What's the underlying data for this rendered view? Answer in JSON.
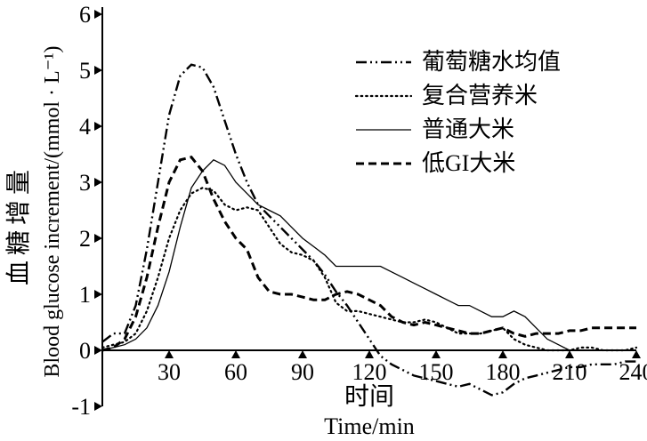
{
  "figure": {
    "background": "#ffffff",
    "line_color": "#000000"
  },
  "chart_data": {
    "type": "line",
    "title": "",
    "xlabel_cn": "时间",
    "xlabel_en": "Time/min",
    "ylabel_cn": "血糖增量",
    "ylabel_en": "Blood glucose increment/(mmol · L⁻¹)",
    "xlim": [
      0,
      240
    ],
    "ylim": [
      -1,
      6
    ],
    "x_ticks": [
      30,
      60,
      90,
      120,
      150,
      180,
      210,
      240
    ],
    "y_ticks": [
      6,
      5,
      4,
      3,
      2,
      1,
      0,
      -1
    ],
    "grid": false,
    "legend_position": "upper-right",
    "x": [
      0,
      5,
      10,
      15,
      20,
      25,
      30,
      35,
      40,
      45,
      50,
      55,
      60,
      65,
      70,
      75,
      80,
      85,
      90,
      95,
      100,
      105,
      110,
      115,
      120,
      125,
      130,
      135,
      140,
      145,
      150,
      155,
      160,
      165,
      170,
      175,
      180,
      185,
      190,
      195,
      200,
      205,
      210,
      215,
      220,
      225,
      230,
      235,
      240
    ],
    "series": [
      {
        "name": "葡萄糖水均值",
        "line_style": "dash-dot-dot",
        "dash": "12 4 2 4 2 4",
        "width": 2.4,
        "color": "#000000",
        "values": [
          0.15,
          0.3,
          0.3,
          0.8,
          1.8,
          3.0,
          4.2,
          4.9,
          5.1,
          5.05,
          4.7,
          4.1,
          3.5,
          3.0,
          2.6,
          2.4,
          2.2,
          2.0,
          1.8,
          1.6,
          1.35,
          1.05,
          0.8,
          0.5,
          0.2,
          -0.1,
          -0.25,
          -0.35,
          -0.45,
          -0.5,
          -0.55,
          -0.6,
          -0.65,
          -0.6,
          -0.7,
          -0.8,
          -0.75,
          -0.6,
          -0.5,
          -0.45,
          -0.4,
          -0.35,
          -0.3,
          -0.3,
          -0.25,
          -0.25,
          -0.25,
          -0.2,
          -0.2
        ]
      },
      {
        "name": "复合营养米",
        "line_style": "dotted",
        "dash": "1.6 4",
        "width": 2.2,
        "color": "#000000",
        "values": [
          0.05,
          0.1,
          0.15,
          0.3,
          0.7,
          1.3,
          2.0,
          2.5,
          2.8,
          2.9,
          2.85,
          2.6,
          2.5,
          2.55,
          2.5,
          2.2,
          1.9,
          1.75,
          1.7,
          1.6,
          1.3,
          0.85,
          0.7,
          0.7,
          0.65,
          0.6,
          0.55,
          0.5,
          0.5,
          0.55,
          0.5,
          0.4,
          0.3,
          0.3,
          0.3,
          0.35,
          0.4,
          0.2,
          0.1,
          0.05,
          0.0,
          0.0,
          0.0,
          0.05,
          0.05,
          0.0,
          0.0,
          0.0,
          0.05
        ]
      },
      {
        "name": "普通大米",
        "line_style": "solid",
        "dash": "",
        "width": 1.3,
        "color": "#000000",
        "values": [
          0.0,
          0.05,
          0.1,
          0.2,
          0.4,
          0.8,
          1.4,
          2.2,
          2.9,
          3.2,
          3.4,
          3.3,
          3.0,
          2.8,
          2.6,
          2.5,
          2.4,
          2.2,
          2.0,
          1.85,
          1.7,
          1.5,
          1.5,
          1.5,
          1.5,
          1.5,
          1.4,
          1.3,
          1.2,
          1.1,
          1.0,
          0.9,
          0.8,
          0.8,
          0.7,
          0.6,
          0.6,
          0.7,
          0.6,
          0.4,
          0.2,
          0.1,
          0.0,
          0.0,
          0.0,
          0.0,
          0.0,
          0.0,
          0.0
        ]
      },
      {
        "name": "低GI大米",
        "line_style": "dashed",
        "dash": "9 5",
        "width": 3,
        "color": "#000000",
        "values": [
          0.0,
          0.05,
          0.2,
          0.6,
          1.3,
          2.2,
          3.0,
          3.4,
          3.45,
          3.2,
          2.7,
          2.3,
          2.0,
          1.8,
          1.3,
          1.05,
          1.0,
          1.0,
          0.95,
          0.9,
          0.9,
          1.0,
          1.05,
          1.0,
          0.9,
          0.8,
          0.6,
          0.5,
          0.45,
          0.5,
          0.45,
          0.4,
          0.35,
          0.3,
          0.3,
          0.35,
          0.4,
          0.3,
          0.25,
          0.3,
          0.3,
          0.3,
          0.35,
          0.35,
          0.4,
          0.4,
          0.4,
          0.4,
          0.4
        ]
      }
    ]
  }
}
